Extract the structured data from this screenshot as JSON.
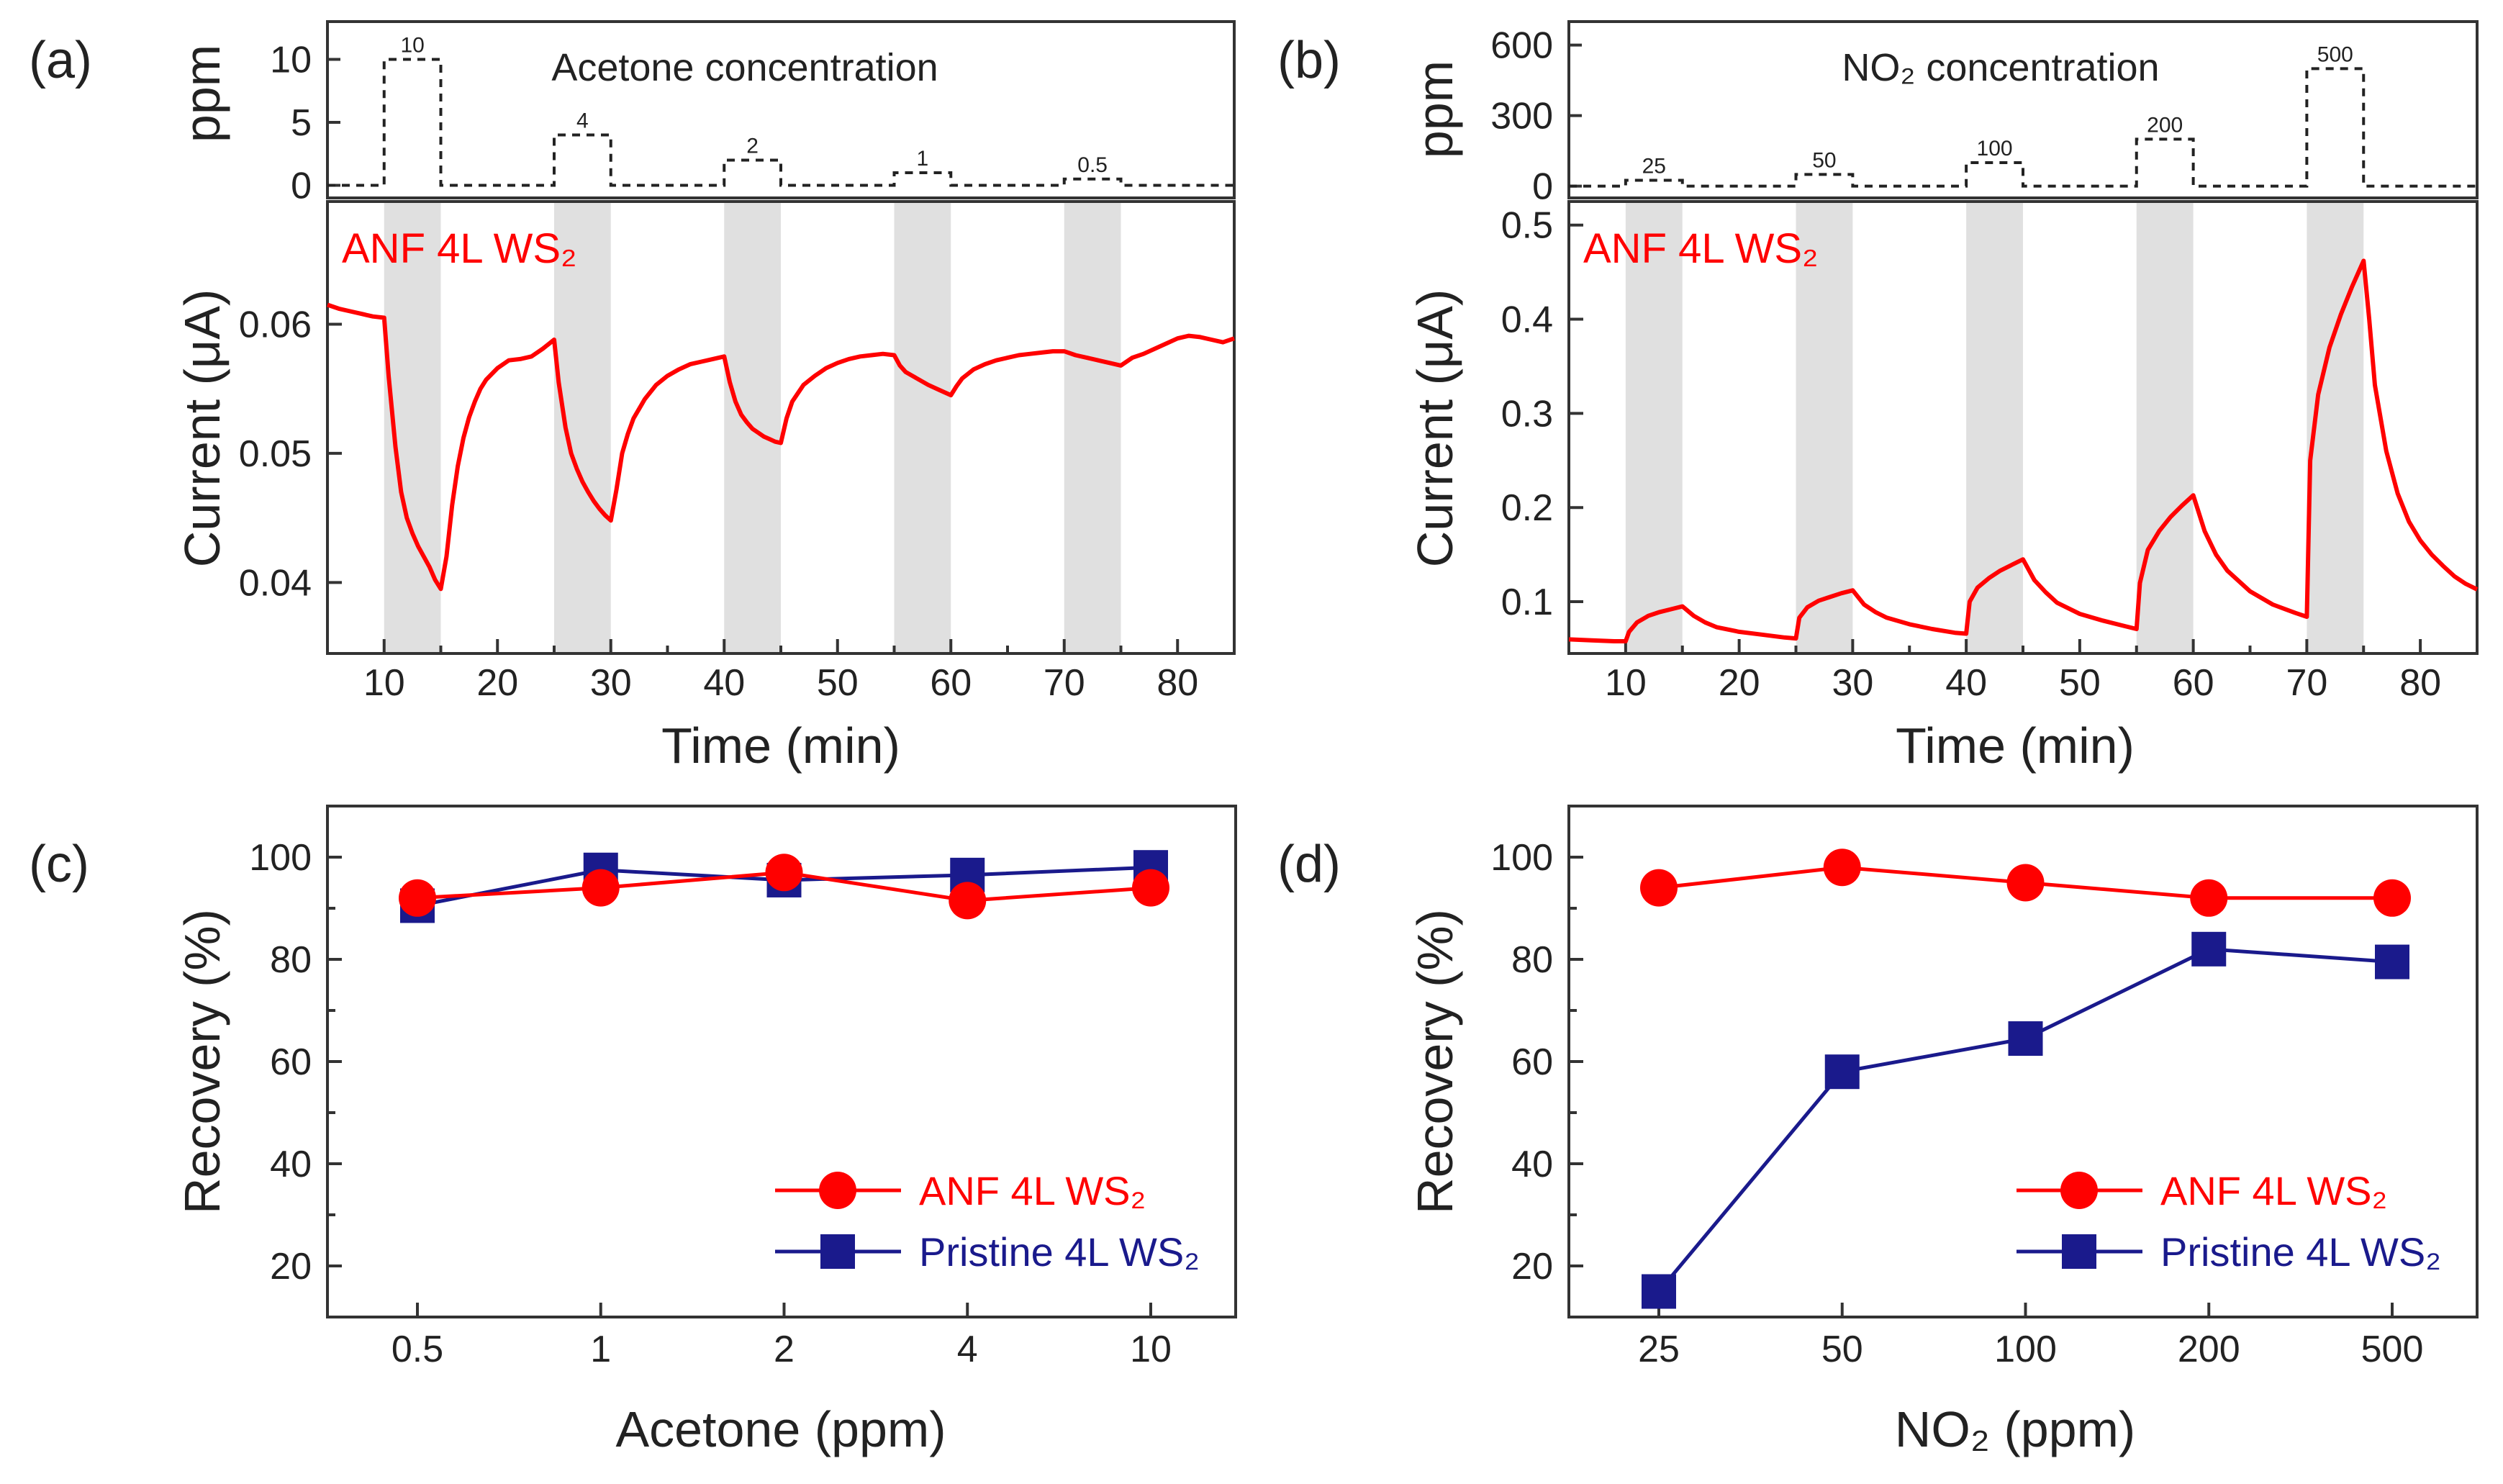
{
  "figure": {
    "colors": {
      "anf": "#ff0000",
      "pristine": "#1a1a8c",
      "exposure": "#e0e0e0",
      "axis": "#333333"
    }
  },
  "panels": [
    {
      "id": "a",
      "panel_label": "(a)",
      "dose_title": "Acetone concentration",
      "dose_axis_label": "ppm",
      "sample_label": "ANF 4L WS₂"
    },
    {
      "id": "b",
      "panel_label": "(b)",
      "dose_title": "NO₂ concentration",
      "dose_axis_label": "ppm",
      "sample_label": "ANF 4L WS₂"
    },
    {
      "id": "c",
      "panel_label": "(c)"
    },
    {
      "id": "d",
      "panel_label": "(d)"
    }
  ],
  "chart_data": [
    {
      "panel": "a",
      "type": "step",
      "title": "Acetone concentration",
      "ylabel": "ppm",
      "ylim": [
        -1,
        13
      ],
      "yticks": [
        0,
        5,
        10
      ],
      "xlim": [
        5,
        85
      ],
      "pulses": [
        {
          "start": 10,
          "end": 15,
          "value": 10,
          "label": "10"
        },
        {
          "start": 25,
          "end": 30,
          "value": 4,
          "label": "4"
        },
        {
          "start": 40,
          "end": 45,
          "value": 2,
          "label": "2"
        },
        {
          "start": 55,
          "end": 60,
          "value": 1,
          "label": "1"
        },
        {
          "start": 70,
          "end": 75,
          "value": 0.5,
          "label": "0.5"
        }
      ]
    },
    {
      "panel": "a",
      "type": "line",
      "title": "",
      "xlabel": "Time (min)",
      "ylabel": "Current (μA)",
      "xlim": [
        5,
        85
      ],
      "ylim": [
        0.0345,
        0.0695
      ],
      "xticks": [
        10,
        20,
        30,
        40,
        50,
        60,
        70,
        80
      ],
      "yticks": [
        0.04,
        0.05,
        0.06
      ],
      "ytick_labels": [
        "0.04",
        "0.05",
        "0.06"
      ],
      "exposure_windows": [
        [
          10,
          15
        ],
        [
          25,
          30
        ],
        [
          40,
          45
        ],
        [
          55,
          60
        ],
        [
          70,
          75
        ]
      ],
      "series": [
        {
          "name": "ANF 4L WS₂",
          "color": "#ff0000",
          "x": [
            5,
            6,
            7,
            8,
            9,
            10,
            10.4,
            11,
            11.5,
            12,
            12.5,
            13,
            13.5,
            14,
            14.5,
            15,
            15.5,
            16,
            16.5,
            17,
            17.5,
            18,
            18.5,
            19,
            20,
            21,
            22,
            23,
            24,
            25,
            25.4,
            26,
            26.5,
            27,
            27.5,
            28,
            28.5,
            29,
            29.5,
            30,
            30.5,
            31,
            31.5,
            32,
            33,
            34,
            35,
            36,
            37,
            38,
            39,
            40,
            40.5,
            41,
            41.5,
            42,
            42.5,
            43,
            43.5,
            44,
            44.5,
            45,
            45.5,
            46,
            47,
            48,
            49,
            50,
            51,
            52,
            53,
            54,
            55,
            55.5,
            56,
            57,
            58,
            59,
            60,
            60.5,
            61,
            62,
            63,
            64,
            65,
            66,
            67,
            68,
            69,
            70,
            71,
            72,
            73,
            74,
            75,
            75.5,
            76,
            77,
            78,
            79,
            80,
            81,
            82,
            83,
            84,
            85
          ],
          "values": [
            0.0615,
            0.0612,
            0.061,
            0.0608,
            0.0606,
            0.0605,
            0.056,
            0.0505,
            0.047,
            0.045,
            0.0438,
            0.0428,
            0.042,
            0.0412,
            0.0402,
            0.0395,
            0.042,
            0.046,
            0.049,
            0.0512,
            0.0528,
            0.054,
            0.055,
            0.0557,
            0.0566,
            0.0572,
            0.0573,
            0.0575,
            0.0581,
            0.0588,
            0.0555,
            0.052,
            0.05,
            0.0488,
            0.0478,
            0.047,
            0.0463,
            0.0457,
            0.0452,
            0.0448,
            0.0472,
            0.05,
            0.0515,
            0.0527,
            0.0542,
            0.0553,
            0.056,
            0.0565,
            0.0569,
            0.0571,
            0.0573,
            0.0575,
            0.0555,
            0.054,
            0.053,
            0.0524,
            0.0519,
            0.0516,
            0.0513,
            0.0511,
            0.0509,
            0.0508,
            0.0527,
            0.054,
            0.0553,
            0.056,
            0.0566,
            0.057,
            0.0573,
            0.0575,
            0.0576,
            0.0577,
            0.0576,
            0.0568,
            0.0563,
            0.0558,
            0.0553,
            0.0549,
            0.0545,
            0.0552,
            0.0558,
            0.0565,
            0.0569,
            0.0572,
            0.0574,
            0.0576,
            0.0577,
            0.0578,
            0.0579,
            0.0579,
            0.0576,
            0.0574,
            0.0572,
            0.057,
            0.0568,
            0.0571,
            0.0574,
            0.0577,
            0.0581,
            0.0585,
            0.0589,
            0.0591,
            0.059,
            0.0588,
            0.0586,
            0.0589
          ]
        }
      ]
    },
    {
      "panel": "b",
      "type": "step",
      "title": "NO₂ concentration",
      "ylabel": "ppm",
      "ylim": [
        -50,
        700
      ],
      "yticks": [
        0,
        300,
        600
      ],
      "xlim": [
        5,
        85
      ],
      "pulses": [
        {
          "start": 10,
          "end": 15,
          "value": 25,
          "label": "25"
        },
        {
          "start": 25,
          "end": 30,
          "value": 50,
          "label": "50"
        },
        {
          "start": 40,
          "end": 45,
          "value": 100,
          "label": "100"
        },
        {
          "start": 55,
          "end": 60,
          "value": 200,
          "label": "200"
        },
        {
          "start": 70,
          "end": 75,
          "value": 500,
          "label": "500"
        }
      ]
    },
    {
      "panel": "b",
      "type": "line",
      "title": "",
      "xlabel": "Time (min)",
      "ylabel": "Current (μA)",
      "xlim": [
        5,
        85
      ],
      "ylim": [
        0.045,
        0.525
      ],
      "xticks": [
        10,
        20,
        30,
        40,
        50,
        60,
        70,
        80
      ],
      "yticks": [
        0.1,
        0.2,
        0.3,
        0.4,
        0.5
      ],
      "ytick_labels": [
        "0.1",
        "0.2",
        "0.3",
        "0.4",
        "0.5"
      ],
      "exposure_windows": [
        [
          10,
          15
        ],
        [
          25,
          30
        ],
        [
          40,
          45
        ],
        [
          55,
          60
        ],
        [
          70,
          75
        ]
      ],
      "series": [
        {
          "name": "ANF 4L WS₂",
          "color": "#ff0000",
          "x": [
            5,
            7,
            9,
            10,
            10.3,
            11,
            12,
            13,
            14,
            15,
            16,
            17,
            18,
            20,
            22,
            24,
            25,
            25.3,
            26,
            27,
            28,
            29,
            30,
            31,
            32,
            33,
            35,
            37,
            39,
            40,
            40.3,
            41,
            42,
            43,
            44,
            45,
            46,
            47,
            48,
            50,
            52,
            54,
            55,
            55.3,
            56,
            57,
            58,
            59,
            60,
            61,
            62,
            63,
            65,
            67,
            69,
            70,
            70.3,
            71,
            72,
            73,
            74,
            75,
            75.5,
            76,
            77,
            78,
            79,
            80,
            81,
            82,
            83,
            84,
            85
          ],
          "values": [
            0.06,
            0.059,
            0.058,
            0.058,
            0.068,
            0.078,
            0.085,
            0.089,
            0.092,
            0.095,
            0.085,
            0.078,
            0.073,
            0.068,
            0.065,
            0.062,
            0.061,
            0.083,
            0.094,
            0.101,
            0.105,
            0.109,
            0.112,
            0.097,
            0.089,
            0.083,
            0.076,
            0.071,
            0.067,
            0.066,
            0.1,
            0.115,
            0.125,
            0.133,
            0.139,
            0.145,
            0.123,
            0.11,
            0.099,
            0.087,
            0.08,
            0.074,
            0.071,
            0.12,
            0.155,
            0.175,
            0.19,
            0.202,
            0.213,
            0.175,
            0.15,
            0.133,
            0.111,
            0.097,
            0.088,
            0.084,
            0.25,
            0.32,
            0.37,
            0.405,
            0.435,
            0.462,
            0.4,
            0.33,
            0.26,
            0.215,
            0.185,
            0.165,
            0.15,
            0.138,
            0.127,
            0.119,
            0.113
          ]
        }
      ]
    },
    {
      "panel": "c",
      "type": "line",
      "title": "",
      "xlabel": "Acetone (ppm)",
      "ylabel": "Recovery (%)",
      "categories": [
        "0.5",
        "1",
        "2",
        "4",
        "10"
      ],
      "ylim": [
        10,
        110
      ],
      "yticks": [
        20,
        40,
        60,
        80,
        100
      ],
      "legend": "lower-right",
      "series": [
        {
          "name": "ANF 4L WS₂",
          "color": "#ff0000",
          "marker": "circle",
          "values": [
            92,
            94,
            97,
            91.5,
            94
          ]
        },
        {
          "name": "Pristine 4L WS₂",
          "color": "#1a1a8c",
          "marker": "square",
          "values": [
            90.5,
            97.5,
            95.5,
            96.5,
            98
          ]
        }
      ]
    },
    {
      "panel": "d",
      "type": "line",
      "title": "",
      "xlabel": "NO₂ (ppm)",
      "ylabel": "Recovery (%)",
      "categories": [
        "25",
        "50",
        "100",
        "200",
        "500"
      ],
      "ylim": [
        10,
        110
      ],
      "yticks": [
        20,
        40,
        60,
        80,
        100
      ],
      "legend": "lower-right",
      "series": [
        {
          "name": "ANF 4L WS₂",
          "color": "#ff0000",
          "marker": "circle",
          "values": [
            94,
            98,
            95,
            92,
            92
          ]
        },
        {
          "name": "Pristine 4L WS₂",
          "color": "#1a1a8c",
          "marker": "square",
          "values": [
            15,
            58,
            64.5,
            82,
            79.5
          ]
        }
      ]
    }
  ]
}
